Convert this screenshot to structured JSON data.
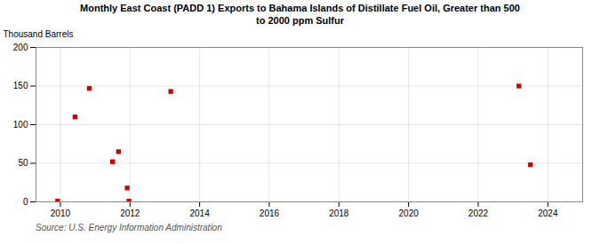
{
  "chart_data": {
    "type": "scatter",
    "title": "Monthly East Coast (PADD 1) Exports to Bahama Islands of Distillate Fuel Oil, Greater than 500\nto 2000 ppm Sulfur",
    "ylabel": "Thousand Barrels",
    "source": "Source: U.S. Energy Information Administration",
    "x": [
      2009.92,
      2010.42,
      2010.83,
      2011.5,
      2011.67,
      2011.92,
      2011.97,
      2013.17,
      2023.17,
      2023.5
    ],
    "values": [
      1,
      110,
      147,
      52,
      65,
      18,
      1,
      143,
      150,
      48
    ],
    "color": "#cc0000",
    "marker": "square",
    "xlim": [
      2009.3,
      2025.0
    ],
    "ylim": [
      0,
      200
    ],
    "xticks": [
      2010,
      2012,
      2014,
      2016,
      2018,
      2020,
      2022,
      2024
    ],
    "yticks": [
      0,
      50,
      100,
      150,
      200
    ],
    "grid": true
  }
}
